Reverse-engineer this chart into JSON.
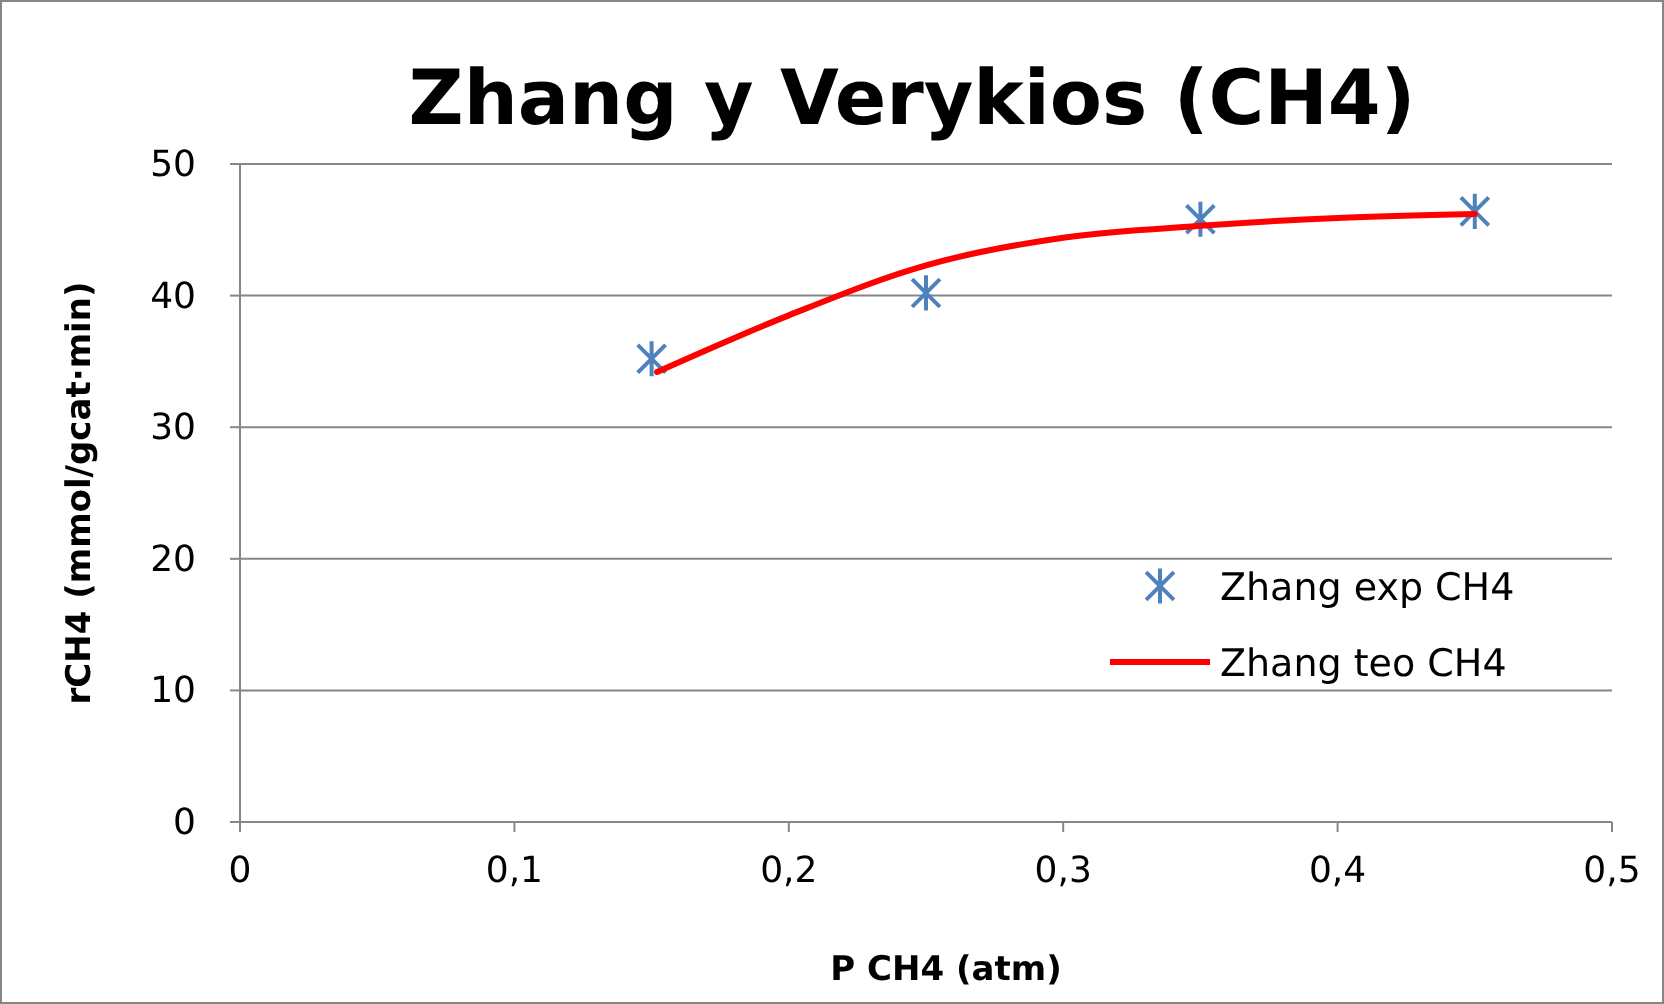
{
  "chart_data": {
    "type": "scatter",
    "title": "Zhang y Verykios (CH4)",
    "xlabel": "P CH4 (atm)",
    "ylabel": "rCH4 (mmol/gcat·min)",
    "xlim": [
      0,
      0.5
    ],
    "xticks": [
      {
        "value": 0,
        "label": "0"
      },
      {
        "value": 0.1,
        "label": "0,1"
      },
      {
        "value": 0.2,
        "label": "0,2"
      },
      {
        "value": 0.3,
        "label": "0,3"
      },
      {
        "value": 0.4,
        "label": "0,4"
      },
      {
        "value": 0.5,
        "label": "0,5"
      }
    ],
    "ylim": [
      0,
      50
    ],
    "yticks": [
      0,
      10,
      20,
      30,
      40,
      50
    ],
    "grid": "y",
    "legend": "right",
    "series": [
      {
        "name": "Zhang exp CH4",
        "marker": "cross",
        "color": "#4f81bd",
        "x": [
          0.15,
          0.25,
          0.35,
          0.45
        ],
        "values": [
          35.2,
          40.2,
          45.8,
          46.4
        ]
      },
      {
        "name": "Zhang teo CH4",
        "type": "line",
        "marker": "none",
        "color": "#ff0000",
        "x": [
          0.152,
          0.2,
          0.25,
          0.3,
          0.35,
          0.4,
          0.45
        ],
        "values": [
          34.2,
          38.5,
          42.3,
          44.4,
          45.3,
          45.9,
          46.2
        ]
      }
    ]
  }
}
